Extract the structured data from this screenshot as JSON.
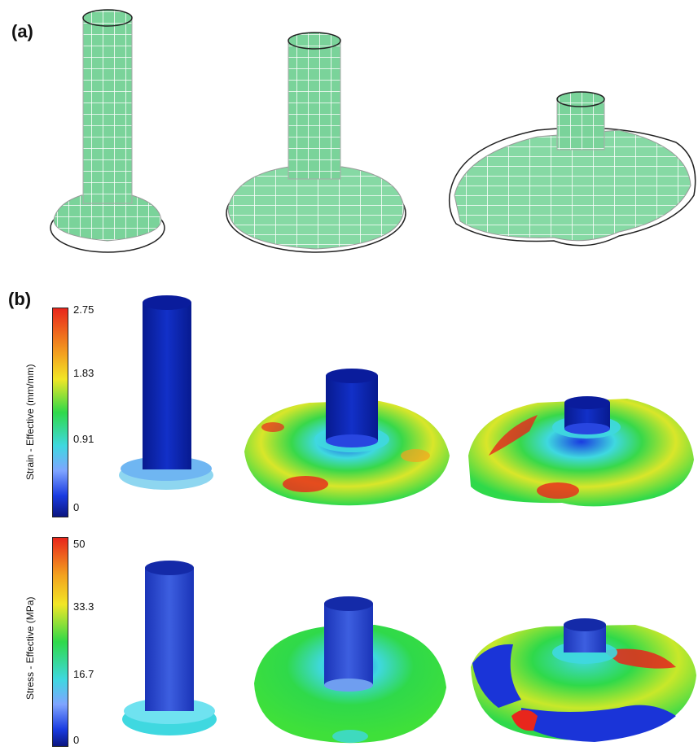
{
  "panels": {
    "a": {
      "label": "(a)"
    },
    "b": {
      "label": "(b)"
    }
  },
  "strain_legend": {
    "title": "Strain - Effective (mm/mm)",
    "ticks": [
      "2.75",
      "1.83",
      "0.91",
      "0"
    ]
  },
  "stress_legend": {
    "title": "Stress - Effective (MPa)",
    "ticks": [
      "50",
      "33.3",
      "16.7",
      "0"
    ]
  },
  "colors": {
    "mesh_green": "#7ad39a",
    "mesh_line": "#ffffff",
    "deep_blue": "#0b1fa8",
    "red": "#e8261c",
    "yellow": "#f1e626",
    "green": "#2fd94a",
    "cyan": "#3fd8e0"
  }
}
